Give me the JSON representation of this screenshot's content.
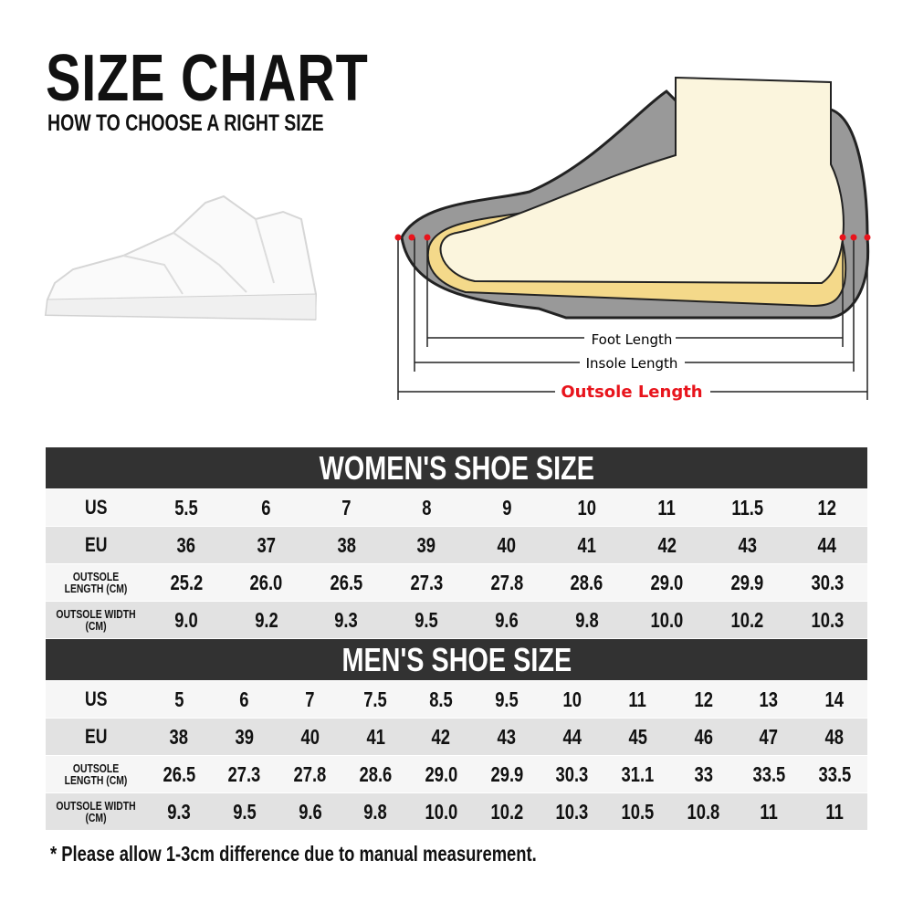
{
  "title": "SIZE CHART",
  "subtitle": "HOW TO CHOOSE A RIGHT SIZE",
  "diagram": {
    "foot_length": "Foot Length",
    "insole_length": "Insole Length",
    "outsole_length": "Outsole Length",
    "accent": "#e8141c"
  },
  "women": {
    "title": "WOMEN'S SHOE SIZE",
    "labels": [
      "US",
      "EU",
      "OUTSOLE LENGTH (CM)",
      "OUTSOLE WIDTH (CM)"
    ],
    "rows": [
      [
        "5.5",
        "6",
        "7",
        "8",
        "9",
        "10",
        "11",
        "11.5",
        "12"
      ],
      [
        "36",
        "37",
        "38",
        "39",
        "40",
        "41",
        "42",
        "43",
        "44"
      ],
      [
        "25.2",
        "26.0",
        "26.5",
        "27.3",
        "27.8",
        "28.6",
        "29.0",
        "29.9",
        "30.3"
      ],
      [
        "9.0",
        "9.2",
        "9.3",
        "9.5",
        "9.6",
        "9.8",
        "10.0",
        "10.2",
        "10.3"
      ]
    ]
  },
  "men": {
    "title": "MEN'S SHOE SIZE",
    "labels": [
      "US",
      "EU",
      "OUTSOLE LENGTH (CM)",
      "OUTSOLE WIDTH (CM)"
    ],
    "rows": [
      [
        "5",
        "6",
        "7",
        "7.5",
        "8.5",
        "9.5",
        "10",
        "11",
        "12",
        "13",
        "14"
      ],
      [
        "38",
        "39",
        "40",
        "41",
        "42",
        "43",
        "44",
        "45",
        "46",
        "47",
        "48"
      ],
      [
        "26.5",
        "27.3",
        "27.8",
        "28.6",
        "29.0",
        "29.9",
        "30.3",
        "31.1",
        "33",
        "33.5",
        "33.5"
      ],
      [
        "9.3",
        "9.5",
        "9.6",
        "9.8",
        "10.0",
        "10.2",
        "10.3",
        "10.5",
        "10.8",
        "11",
        "11"
      ]
    ]
  },
  "note": "* Please allow 1-3cm difference due to manual measurement.",
  "colors": {
    "header_bg": "#323232",
    "row_light": "#f6f6f6",
    "row_dark": "#e2e2e2"
  }
}
